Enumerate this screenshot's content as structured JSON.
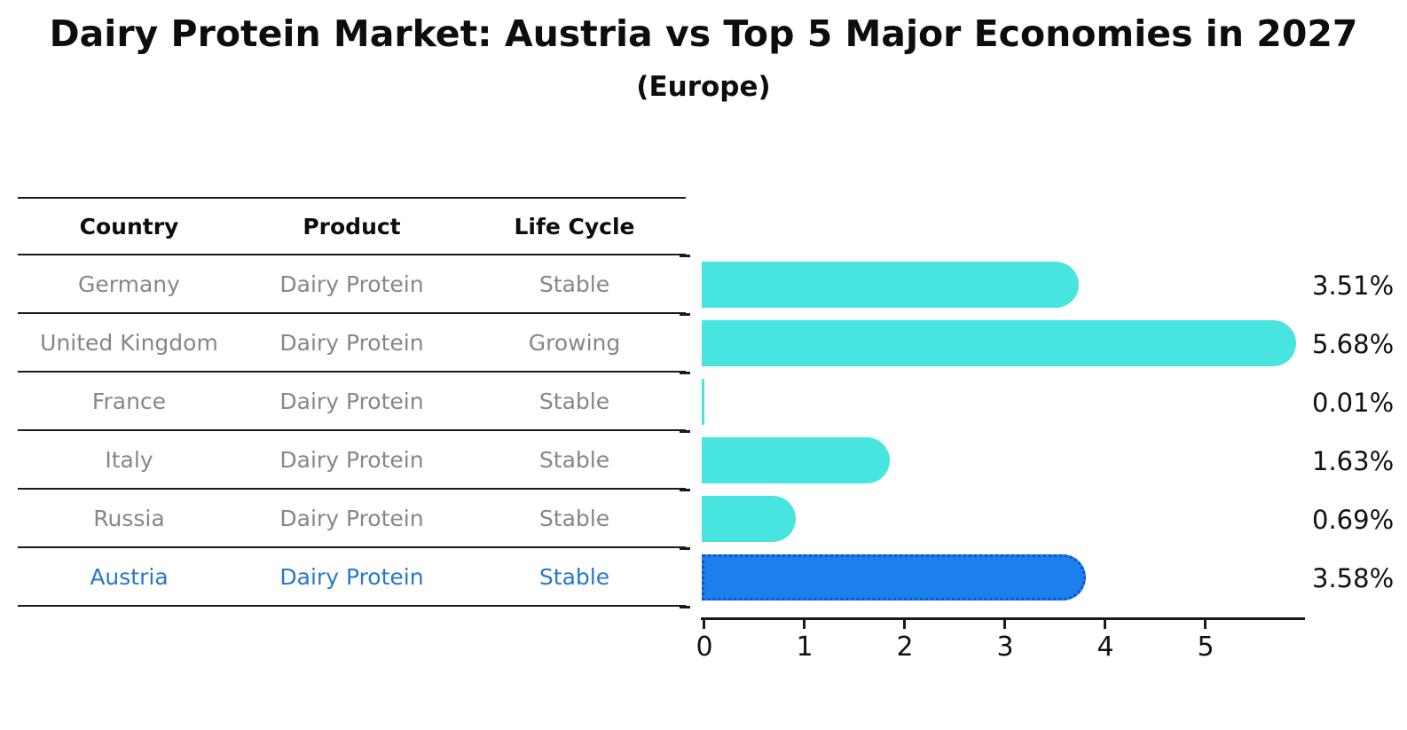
{
  "title": "Dairy Protein Market: Austria vs Top 5 Major Economies in 2027",
  "subtitle": "(Europe)",
  "table": {
    "headers": [
      "Country",
      "Product",
      "Life Cycle"
    ],
    "rows": [
      {
        "country": "Germany",
        "product": "Dairy Protein",
        "life_cycle": "Stable",
        "highlight": false
      },
      {
        "country": "United Kingdom",
        "product": "Dairy Protein",
        "life_cycle": "Growing",
        "highlight": false
      },
      {
        "country": "France",
        "product": "Dairy Protein",
        "life_cycle": "Stable",
        "highlight": false
      },
      {
        "country": "Italy",
        "product": "Dairy Protein",
        "life_cycle": "Stable",
        "highlight": false
      },
      {
        "country": "Russia",
        "product": "Dairy Protein",
        "life_cycle": "Stable",
        "highlight": false
      },
      {
        "country": "Austria",
        "product": "Dairy Protein",
        "life_cycle": "Stable",
        "highlight": true
      }
    ]
  },
  "chart_data": {
    "type": "bar",
    "orientation": "horizontal",
    "title": "Dairy Protein Market: Austria vs Top 5 Major Economies in 2027",
    "subtitle": "(Europe)",
    "categories": [
      "Germany",
      "United Kingdom",
      "France",
      "Italy",
      "Russia",
      "Austria"
    ],
    "values": [
      3.51,
      5.68,
      0.01,
      1.63,
      0.69,
      3.58
    ],
    "value_labels": [
      "3.51%",
      "5.68%",
      "0.01%",
      "1.63%",
      "0.69%",
      "3.58%"
    ],
    "highlight_category": "Austria",
    "highlight_index": 5,
    "xlabel": "",
    "ylabel": "",
    "xlim": [
      0,
      6
    ],
    "xticks": [
      0,
      1,
      2,
      3,
      4,
      5
    ],
    "grid": false,
    "legend": false,
    "colors": {
      "bar_default": "#48E5E0",
      "bar_highlight": "#1B80EE",
      "bar_highlight_border": "#0D54C6",
      "table_row_text": "#878787",
      "highlight_text": "#2878CB",
      "axis_and_labels": "#111111"
    }
  }
}
